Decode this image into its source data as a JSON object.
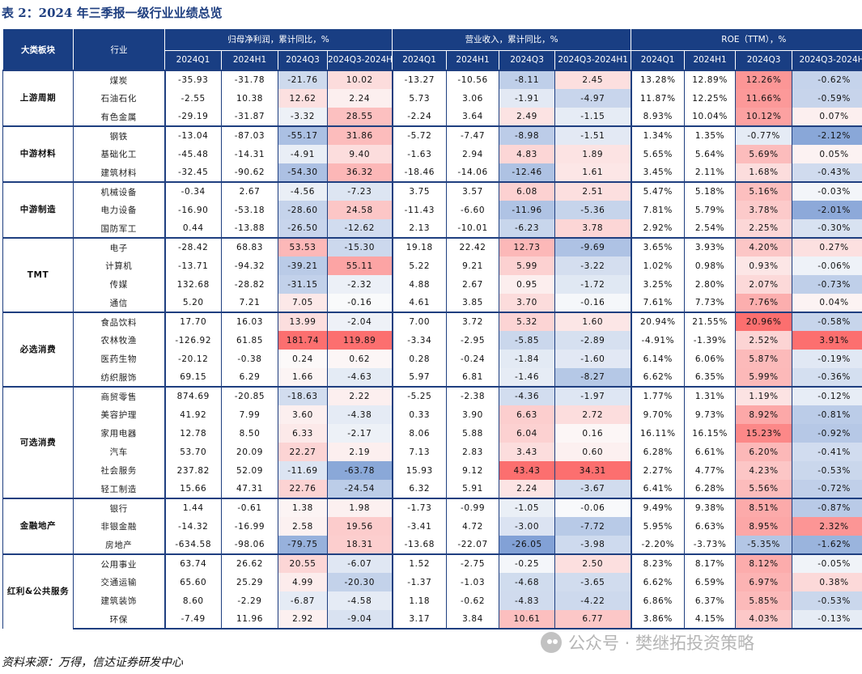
{
  "title": "表 2：2024 年三季报一级行业业绩总览",
  "header": {
    "segment_col": "大类板块",
    "industry_col": "行业",
    "groups": [
      "归母净利润，累计同比，%",
      "营业收入，累计同比，%",
      "ROE（TTM），%"
    ],
    "periods": [
      "2024Q1",
      "2024H1",
      "2024Q3",
      "2024Q3-2024H1"
    ]
  },
  "segments": [
    {
      "name": "上游周期",
      "rows": [
        {
          "industry": "煤炭",
          "np": [
            "-35.93",
            "-31.78",
            "-21.76",
            "10.02"
          ],
          "rev": [
            "-13.27",
            "-10.56",
            "-8.11",
            "2.45"
          ],
          "roe": [
            "13.28%",
            "12.89%",
            "12.26%",
            "-0.62%"
          ]
        },
        {
          "industry": "石油石化",
          "np": [
            "-2.55",
            "10.38",
            "12.62",
            "2.24"
          ],
          "rev": [
            "5.73",
            "3.06",
            "-1.91",
            "-4.97"
          ],
          "roe": [
            "11.87%",
            "12.25%",
            "11.66%",
            "-0.59%"
          ]
        },
        {
          "industry": "有色金属",
          "np": [
            "-29.19",
            "-31.87",
            "-3.32",
            "28.55"
          ],
          "rev": [
            "-2.24",
            "3.64",
            "2.49",
            "-1.15"
          ],
          "roe": [
            "8.93%",
            "10.04%",
            "10.12%",
            "0.07%"
          ]
        }
      ]
    },
    {
      "name": "中游材料",
      "rows": [
        {
          "industry": "钢铁",
          "np": [
            "-13.04",
            "-87.03",
            "-55.17",
            "31.86"
          ],
          "rev": [
            "-5.72",
            "-7.47",
            "-8.98",
            "-1.51"
          ],
          "roe": [
            "1.34%",
            "1.35%",
            "-0.77%",
            "-2.12%"
          ]
        },
        {
          "industry": "基础化工",
          "np": [
            "-45.48",
            "-14.31",
            "-4.91",
            "9.40"
          ],
          "rev": [
            "-1.63",
            "2.94",
            "4.83",
            "1.89"
          ],
          "roe": [
            "5.65%",
            "5.64%",
            "5.69%",
            "0.05%"
          ]
        },
        {
          "industry": "建筑材料",
          "np": [
            "-32.45",
            "-90.62",
            "-54.30",
            "36.32"
          ],
          "rev": [
            "-18.46",
            "-14.06",
            "-12.46",
            "1.61"
          ],
          "roe": [
            "3.45%",
            "2.11%",
            "1.68%",
            "-0.43%"
          ]
        }
      ]
    },
    {
      "name": "中游制造",
      "rows": [
        {
          "industry": "机械设备",
          "np": [
            "-0.34",
            "2.67",
            "-4.56",
            "-7.23"
          ],
          "rev": [
            "3.75",
            "3.57",
            "6.08",
            "2.51"
          ],
          "roe": [
            "5.47%",
            "5.18%",
            "5.16%",
            "-0.03%"
          ]
        },
        {
          "industry": "电力设备",
          "np": [
            "-16.90",
            "-53.18",
            "-28.60",
            "24.58"
          ],
          "rev": [
            "-11.43",
            "-6.60",
            "-11.96",
            "-5.36"
          ],
          "roe": [
            "7.81%",
            "5.79%",
            "3.78%",
            "-2.01%"
          ]
        },
        {
          "industry": "国防军工",
          "np": [
            "0.44",
            "-13.88",
            "-26.50",
            "-12.62"
          ],
          "rev": [
            "2.13",
            "-10.01",
            "-6.23",
            "3.78"
          ],
          "roe": [
            "2.92%",
            "2.54%",
            "2.25%",
            "-0.30%"
          ]
        }
      ]
    },
    {
      "name": "TMT",
      "rows": [
        {
          "industry": "电子",
          "np": [
            "-28.42",
            "68.83",
            "53.53",
            "-15.30"
          ],
          "rev": [
            "19.18",
            "22.42",
            "12.73",
            "-9.69"
          ],
          "roe": [
            "3.65%",
            "3.93%",
            "4.20%",
            "0.27%"
          ]
        },
        {
          "industry": "计算机",
          "np": [
            "-13.71",
            "-94.32",
            "-39.21",
            "55.11"
          ],
          "rev": [
            "5.22",
            "9.21",
            "5.99",
            "-3.22"
          ],
          "roe": [
            "1.02%",
            "0.98%",
            "0.93%",
            "-0.06%"
          ]
        },
        {
          "industry": "传媒",
          "np": [
            "132.68",
            "-28.82",
            "-31.15",
            "-2.32"
          ],
          "rev": [
            "4.88",
            "2.67",
            "0.95",
            "-1.72"
          ],
          "roe": [
            "3.25%",
            "2.80%",
            "2.07%",
            "-0.73%"
          ]
        },
        {
          "industry": "通信",
          "np": [
            "5.20",
            "7.21",
            "7.05",
            "-0.16"
          ],
          "rev": [
            "4.61",
            "3.85",
            "3.70",
            "-0.16"
          ],
          "roe": [
            "7.61%",
            "7.73%",
            "7.76%",
            "0.04%"
          ]
        }
      ]
    },
    {
      "name": "必选消费",
      "rows": [
        {
          "industry": "食品饮料",
          "np": [
            "17.70",
            "16.03",
            "13.99",
            "-2.04"
          ],
          "rev": [
            "7.00",
            "3.72",
            "5.32",
            "1.60"
          ],
          "roe": [
            "20.94%",
            "21.55%",
            "20.96%",
            "-0.58%"
          ]
        },
        {
          "industry": "农林牧渔",
          "np": [
            "-126.92",
            "61.85",
            "181.74",
            "119.89"
          ],
          "rev": [
            "-3.34",
            "-2.95",
            "-5.85",
            "-2.89"
          ],
          "roe": [
            "-4.91%",
            "-1.39%",
            "2.52%",
            "3.91%"
          ]
        },
        {
          "industry": "医药生物",
          "np": [
            "-20.12",
            "-0.38",
            "0.24",
            "0.62"
          ],
          "rev": [
            "0.28",
            "-0.24",
            "-1.84",
            "-1.60"
          ],
          "roe": [
            "6.14%",
            "6.06%",
            "5.87%",
            "-0.19%"
          ]
        },
        {
          "industry": "纺织服饰",
          "np": [
            "69.15",
            "6.29",
            "1.66",
            "-4.63"
          ],
          "rev": [
            "5.97",
            "6.81",
            "-1.46",
            "-8.27"
          ],
          "roe": [
            "6.62%",
            "6.35%",
            "5.99%",
            "-0.36%"
          ]
        }
      ]
    },
    {
      "name": "可选消费",
      "rows": [
        {
          "industry": "商贸零售",
          "np": [
            "874.69",
            "-20.85",
            "-18.63",
            "2.22"
          ],
          "rev": [
            "-5.25",
            "-2.38",
            "-4.36",
            "-1.97"
          ],
          "roe": [
            "1.77%",
            "1.31%",
            "1.19%",
            "-0.12%"
          ]
        },
        {
          "industry": "美容护理",
          "np": [
            "41.92",
            "7.99",
            "3.60",
            "-4.38"
          ],
          "rev": [
            "0.33",
            "3.90",
            "6.63",
            "2.72"
          ],
          "roe": [
            "9.70%",
            "9.73%",
            "8.92%",
            "-0.81%"
          ]
        },
        {
          "industry": "家用电器",
          "np": [
            "12.78",
            "8.50",
            "6.33",
            "-2.17"
          ],
          "rev": [
            "8.06",
            "5.88",
            "6.04",
            "0.16"
          ],
          "roe": [
            "16.11%",
            "16.15%",
            "15.23%",
            "-0.92%"
          ]
        },
        {
          "industry": "汽车",
          "np": [
            "53.70",
            "20.09",
            "22.27",
            "2.19"
          ],
          "rev": [
            "7.13",
            "2.83",
            "3.43",
            "0.60"
          ],
          "roe": [
            "6.28%",
            "6.61%",
            "6.20%",
            "-0.41%"
          ]
        },
        {
          "industry": "社会服务",
          "np": [
            "237.82",
            "52.09",
            "-11.69",
            "-63.78"
          ],
          "rev": [
            "15.93",
            "9.12",
            "43.43",
            "34.31"
          ],
          "roe": [
            "2.27%",
            "4.77%",
            "4.23%",
            "-0.53%"
          ]
        },
        {
          "industry": "轻工制造",
          "np": [
            "15.66",
            "47.31",
            "22.76",
            "-24.54"
          ],
          "rev": [
            "6.32",
            "5.91",
            "2.24",
            "-3.67"
          ],
          "roe": [
            "6.41%",
            "6.28%",
            "5.56%",
            "-0.72%"
          ]
        }
      ]
    },
    {
      "name": "金融地产",
      "rows": [
        {
          "industry": "银行",
          "np": [
            "1.44",
            "-0.61",
            "1.38",
            "1.98"
          ],
          "rev": [
            "-1.73",
            "-0.99",
            "-1.05",
            "-0.06"
          ],
          "roe": [
            "9.49%",
            "9.38%",
            "8.51%",
            "-0.87%"
          ]
        },
        {
          "industry": "非银金融",
          "np": [
            "-14.32",
            "-16.99",
            "2.58",
            "19.56"
          ],
          "rev": [
            "-3.41",
            "4.72",
            "-3.00",
            "-7.72"
          ],
          "roe": [
            "5.95%",
            "6.63%",
            "8.95%",
            "2.32%"
          ]
        },
        {
          "industry": "房地产",
          "np": [
            "-634.58",
            "-98.06",
            "-79.75",
            "18.31"
          ],
          "rev": [
            "-13.68",
            "-22.07",
            "-26.05",
            "-3.98"
          ],
          "roe": [
            "-2.20%",
            "-3.73%",
            "-5.35%",
            "-1.62%"
          ]
        }
      ]
    },
    {
      "name": "红利&公共服务",
      "rows": [
        {
          "industry": "公用事业",
          "np": [
            "63.74",
            "26.62",
            "20.55",
            "-6.07"
          ],
          "rev": [
            "1.52",
            "-2.75",
            "-0.25",
            "2.50"
          ],
          "roe": [
            "8.23%",
            "8.17%",
            "8.12%",
            "-0.05%"
          ]
        },
        {
          "industry": "交通运输",
          "np": [
            "65.60",
            "25.29",
            "4.99",
            "-20.30"
          ],
          "rev": [
            "-1.37",
            "-1.03",
            "-4.68",
            "-3.65"
          ],
          "roe": [
            "6.62%",
            "6.59%",
            "6.97%",
            "0.38%"
          ]
        },
        {
          "industry": "建筑装饰",
          "np": [
            "8.60",
            "-2.29",
            "-6.87",
            "-4.58"
          ],
          "rev": [
            "1.18",
            "-0.62",
            "-4.83",
            "-4.22"
          ],
          "roe": [
            "6.86%",
            "6.37%",
            "5.85%",
            "-0.53%"
          ]
        },
        {
          "industry": "环保",
          "np": [
            "-7.49",
            "11.96",
            "2.92",
            "-9.04"
          ],
          "rev": [
            "3.17",
            "3.84",
            "10.61",
            "6.77"
          ],
          "roe": [
            "3.86%",
            "4.15%",
            "4.03%",
            "-0.13%"
          ]
        }
      ]
    }
  ],
  "source": "资料来源：万得，信达证券研发中心",
  "watermark": "公众号 · 樊继拓投资策略",
  "colors": {
    "header_bg": "#193e83",
    "title": "#1f3f80",
    "positive": "#e83b3b",
    "negative": "#2b5fbf"
  }
}
